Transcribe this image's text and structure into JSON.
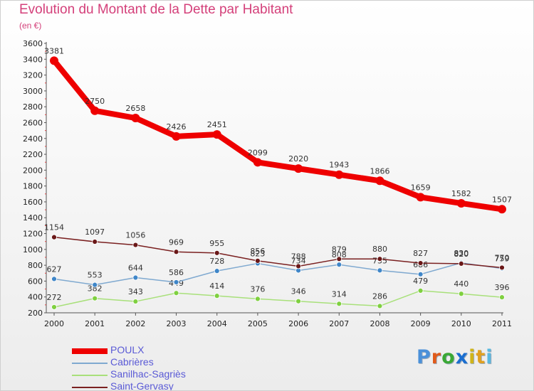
{
  "header": {
    "title": "Evolution du Montant de la Dette par Habitant",
    "subtitle": "(en €)"
  },
  "logo": {
    "letters": [
      "P",
      "r",
      "o",
      "x",
      "i",
      "t",
      "i"
    ],
    "colors": [
      "#4a90d9",
      "#e05a1a",
      "#3aa835",
      "#1a6ed0",
      "#d0b418",
      "#e0a020",
      "#58b8e0"
    ]
  },
  "chart_data": {
    "type": "line",
    "title": "Evolution du Montant de la Dette par Habitant",
    "ylabel": "(en €)",
    "xlabel": "",
    "categories": [
      "2000",
      "2001",
      "2002",
      "2003",
      "2004",
      "2005",
      "2006",
      "2007",
      "2008",
      "2009",
      "2010",
      "2011"
    ],
    "ylim": [
      200,
      3600
    ],
    "yticks": [
      200,
      400,
      600,
      800,
      1000,
      1200,
      1400,
      1600,
      1800,
      2000,
      2200,
      2400,
      2600,
      2800,
      3000,
      3200,
      3400,
      3600
    ],
    "grid": false,
    "legend": "bottom-left",
    "series": [
      {
        "name": "POULX",
        "color": "#ee0000",
        "values": [
          3381,
          2750,
          2658,
          2426,
          2451,
          2099,
          2020,
          1943,
          1866,
          1659,
          1582,
          1507
        ]
      },
      {
        "name": "Cabrières",
        "color": "#7fa9d0",
        "values": [
          627,
          553,
          644,
          586,
          728,
          823,
          734,
          808,
          735,
          686,
          830,
          759
        ]
      },
      {
        "name": "Sanilhac-Sagriès",
        "color": "#a8e07a",
        "values": [
          272,
          382,
          343,
          449,
          414,
          376,
          346,
          314,
          286,
          479,
          440,
          396
        ]
      },
      {
        "name": "Saint-Gervasy",
        "color": "#7a2020",
        "values": [
          1154,
          1097,
          1056,
          969,
          955,
          856,
          788,
          879,
          880,
          827,
          820,
          770
        ]
      }
    ]
  }
}
